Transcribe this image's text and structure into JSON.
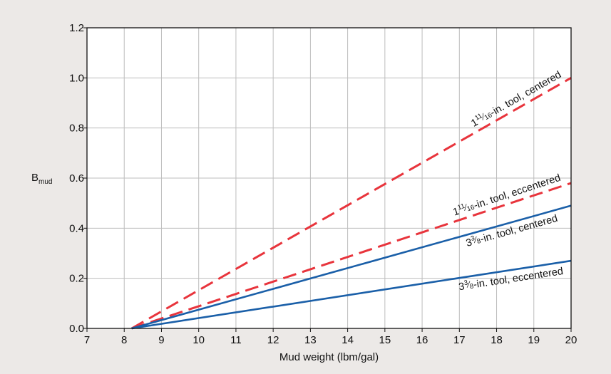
{
  "chart_data": {
    "type": "line",
    "title": "",
    "xlabel": "Mud weight (lbm/gal)",
    "ylabel_main": "B",
    "ylabel_sub": "mud",
    "xlim": [
      7,
      20
    ],
    "ylim": [
      0,
      1.2
    ],
    "x_ticks": [
      "7",
      "8",
      "9",
      "10",
      "11",
      "12",
      "13",
      "14",
      "15",
      "16",
      "17",
      "18",
      "19",
      "20"
    ],
    "y_ticks": [
      "0.0",
      "0.2",
      "0.4",
      "0.6",
      "0.8",
      "1.0",
      "1.2"
    ],
    "grid": true,
    "colors": {
      "red": "#e8343c",
      "blue": "#1a5fa8",
      "grid": "#bdbdbd",
      "plot_bg": "#ffffff",
      "page_bg": "#ece9e7"
    },
    "series": [
      {
        "name": "1¹¹⁄₁₆-in. tool, centered",
        "label_parts": [
          "1",
          "11",
          "⁄",
          "16",
          "-in. tool, centered"
        ],
        "style": "dashed",
        "color": "#e8343c",
        "x": [
          8.2,
          20
        ],
        "y": [
          0.0,
          1.0
        ]
      },
      {
        "name": "1¹¹⁄₁₆-in. tool, eccentered",
        "label_parts": [
          "1",
          "11",
          "⁄",
          "16",
          "-in. tool, eccentered"
        ],
        "style": "dashed",
        "color": "#e8343c",
        "x": [
          8.2,
          20
        ],
        "y": [
          0.0,
          0.58
        ]
      },
      {
        "name": "3³⁄₈-in. tool, centered",
        "label_parts": [
          "3",
          "3",
          "⁄",
          "8",
          "-in. tool, centered"
        ],
        "style": "solid",
        "color": "#1a5fa8",
        "x": [
          8.2,
          20
        ],
        "y": [
          0.0,
          0.49
        ]
      },
      {
        "name": "3³⁄₈-in. tool, eccentered",
        "label_parts": [
          "3",
          "3",
          "⁄",
          "8",
          "-in. tool, eccentered"
        ],
        "style": "solid",
        "color": "#1a5fa8",
        "x": [
          8.2,
          20
        ],
        "y": [
          0.0,
          0.27
        ]
      }
    ]
  }
}
